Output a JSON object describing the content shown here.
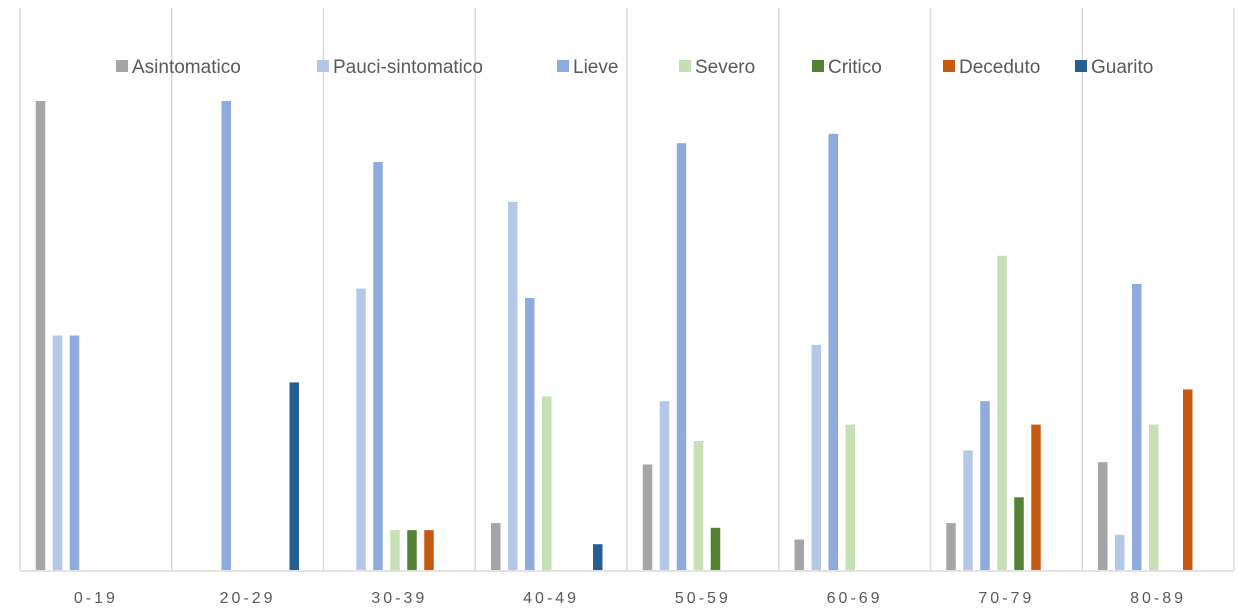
{
  "chart_data": {
    "type": "bar",
    "categories": [
      "0-19",
      "20-29",
      "30-39",
      "40-49",
      "50-59",
      "60-69",
      "70-79",
      "80-89"
    ],
    "series": [
      {
        "name": "Asintomatico",
        "color": "#a5a5a5",
        "values": [
          100,
          0,
          0,
          10,
          22.5,
          6.5,
          10,
          23
        ]
      },
      {
        "name": "Pauci-sintomatico",
        "color": "#b4c7e7",
        "values": [
          50,
          0,
          60,
          78.5,
          36,
          48,
          25.5,
          7.5
        ]
      },
      {
        "name": "Lieve",
        "color": "#8faadc",
        "values": [
          50,
          100,
          87,
          58,
          91,
          93,
          36,
          61
        ]
      },
      {
        "name": "Severo",
        "color": "#c5e0b4",
        "values": [
          0,
          0,
          8.5,
          37,
          27.5,
          31,
          67,
          31
        ]
      },
      {
        "name": "Critico",
        "color": "#548235",
        "values": [
          0,
          0,
          8.5,
          0,
          9,
          0,
          15.5,
          0
        ]
      },
      {
        "name": "Deceduto",
        "color": "#c55a11",
        "values": [
          0,
          0,
          8.5,
          0,
          0,
          0,
          31,
          38.5
        ]
      },
      {
        "name": "Guarito",
        "color": "#255e91",
        "values": [
          0,
          40,
          0,
          5.5,
          0,
          0,
          0,
          0
        ]
      }
    ],
    "title": "",
    "xlabel": "",
    "ylabel": "",
    "ylim": [
      0,
      100
    ],
    "grid": "vertical",
    "legend": "top"
  }
}
